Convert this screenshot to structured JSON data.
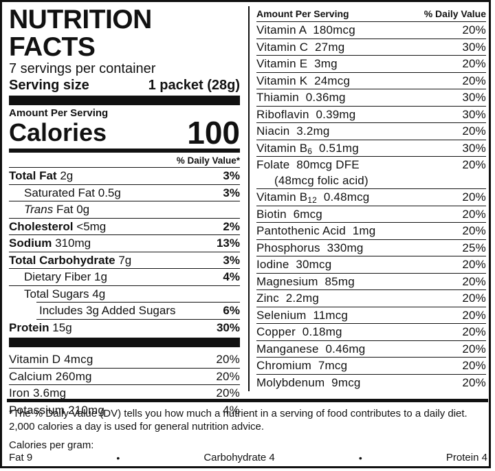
{
  "header": {
    "title": "NUTRITION FACTS",
    "servings": "7 servings per container",
    "serving_size_label": "Serving size",
    "serving_size_value": "1 packet (28g)"
  },
  "calories": {
    "amount_label": "Amount Per Serving",
    "label": "Calories",
    "value": "100"
  },
  "dv_header": "% Daily Value*",
  "nutrients": [
    {
      "name": "Total Fat",
      "amount": "2g",
      "dv": "3%"
    },
    {
      "name": "Saturated Fat",
      "amount": "0.5g",
      "dv": "3%"
    },
    {
      "name": "Trans",
      "name_suffix": "Fat 0g",
      "dv": ""
    },
    {
      "name": "Cholesterol",
      "amount": "<5mg",
      "dv": "2%"
    },
    {
      "name": "Sodium",
      "amount": "310mg",
      "dv": "13%"
    },
    {
      "name": "Total Carbohydrate",
      "amount": "7g",
      "dv": "3%"
    },
    {
      "name": "Dietary Fiber",
      "amount": "1g",
      "dv": "4%"
    },
    {
      "name": "Total Sugars",
      "amount": "4g",
      "dv": ""
    },
    {
      "name": "Includes 3g Added Sugars",
      "amount": "",
      "dv": "6%"
    },
    {
      "name": "Protein",
      "amount": "15g",
      "dv": "30%"
    }
  ],
  "minerals_left": [
    {
      "text": "Vitamin D 4mcg",
      "dv": "20%"
    },
    {
      "text": "Calcium 260mg",
      "dv": "20%"
    },
    {
      "text": "Iron 3.6mg",
      "dv": "20%"
    },
    {
      "text": "Potassium 210mg",
      "dv": "4%"
    }
  ],
  "right_header": {
    "amount": "Amount Per Serving",
    "dv": "% Daily Value"
  },
  "vitamins_right": [
    {
      "text": "Vitamin A  180mcg",
      "dv": "20%"
    },
    {
      "text": "Vitamin C  27mg",
      "dv": "30%"
    },
    {
      "text": "Vitamin E  3mg",
      "dv": "20%"
    },
    {
      "text": "Vitamin K  24mcg",
      "dv": "20%"
    },
    {
      "text": "Thiamin  0.36mg",
      "dv": "30%"
    },
    {
      "text": "Riboflavin  0.39mg",
      "dv": "30%"
    },
    {
      "text": "Niacin  3.2mg",
      "dv": "20%"
    },
    {
      "text_pre": "Vitamin B",
      "text_sub": "6",
      "text_post": "  0.51mg",
      "dv": "30%"
    },
    {
      "text": "Folate  80mcg DFE",
      "text2": "(48mcg folic acid)",
      "dv": "20%"
    },
    {
      "text_pre": "Vitamin B",
      "text_sub": "12",
      "text_post": "  0.48mcg",
      "dv": "20%"
    },
    {
      "text": "Biotin  6mcg",
      "dv": "20%"
    },
    {
      "text": "Pantothenic Acid  1mg",
      "dv": "20%"
    },
    {
      "text": "Phosphorus  330mg",
      "dv": "25%"
    },
    {
      "text": "Iodine  30mcg",
      "dv": "20%"
    },
    {
      "text": "Magnesium  85mg",
      "dv": "20%"
    },
    {
      "text": "Zinc  2.2mg",
      "dv": "20%"
    },
    {
      "text": "Selenium  11mcg",
      "dv": "20%"
    },
    {
      "text": "Copper  0.18mg",
      "dv": "20%"
    },
    {
      "text": "Manganese  0.46mg",
      "dv": "20%"
    },
    {
      "text": "Chromium  7mcg",
      "dv": "20%"
    },
    {
      "text": "Molybdenum  9mcg",
      "dv": "20%"
    }
  ],
  "footnote": "*The % Daily Value (DV) tells you how much a nutrient in a serving of food contributes to a daily diet. 2,000 calories a day is used for general nutrition advice.",
  "calories_per_gram": {
    "label": "Calories per gram:",
    "fat": "Fat 9",
    "carb": "Carbohydrate 4",
    "protein": "Protein 4",
    "separator": "•"
  }
}
